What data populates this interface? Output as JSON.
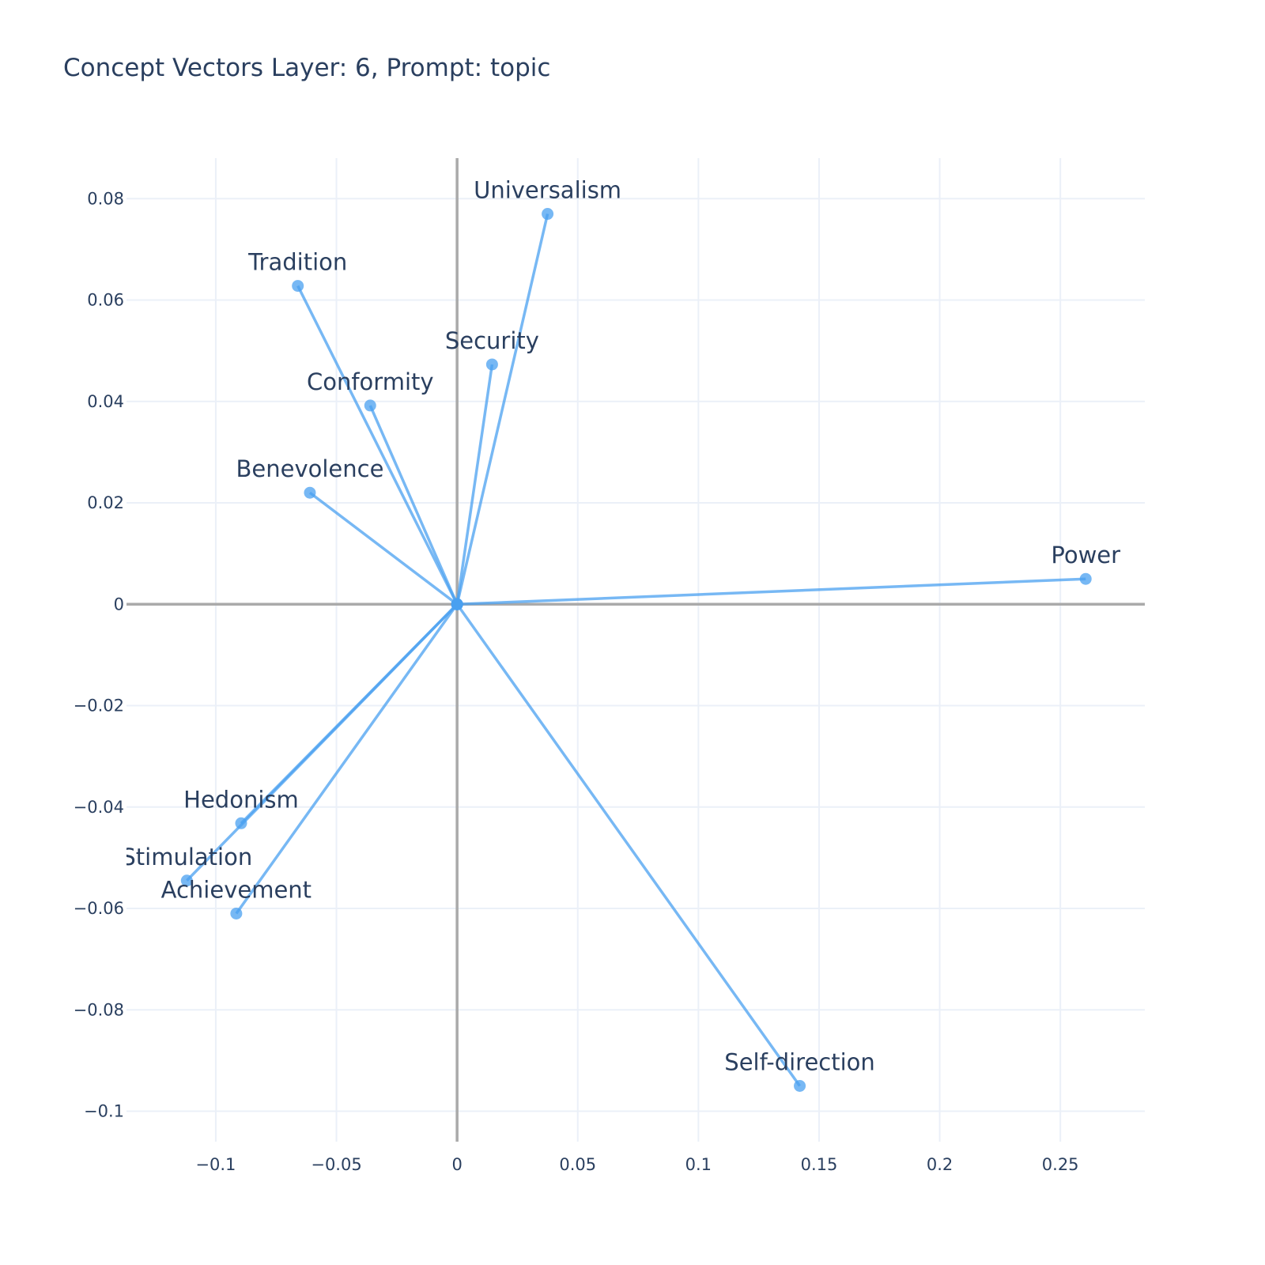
{
  "chart_data": {
    "type": "scatter",
    "title": "Concept Vectors Layer: 6, Prompt: topic",
    "xlabel": "",
    "ylabel": "",
    "xlim": [
      -0.137,
      0.285
    ],
    "ylim": [
      -0.106,
      0.088
    ],
    "x_ticks": [
      -0.1,
      -0.05,
      0,
      0.05,
      0.1,
      0.15,
      0.2,
      0.25
    ],
    "x_tick_labels": [
      "−0.1",
      "−0.05",
      "0",
      "0.05",
      "0.1",
      "0.15",
      "0.2",
      "0.25"
    ],
    "y_ticks": [
      0.08,
      0.06,
      0.04,
      0.02,
      0,
      -0.02,
      -0.04,
      -0.06,
      -0.08,
      -0.1
    ],
    "y_tick_labels": [
      "0.08",
      "0.06",
      "0.04",
      "0.02",
      "0",
      "−0.02",
      "−0.04",
      "−0.06",
      "−0.08",
      "−0.1"
    ],
    "grid": true,
    "origin": [
      0,
      0
    ],
    "color": "#4aa0f0",
    "points": [
      {
        "label": "Universalism",
        "x": 0.0375,
        "y": 0.077
      },
      {
        "label": "Tradition",
        "x": -0.066,
        "y": 0.0628
      },
      {
        "label": "Security",
        "x": 0.0145,
        "y": 0.0473
      },
      {
        "label": "Conformity",
        "x": -0.036,
        "y": 0.0392
      },
      {
        "label": "Benevolence",
        "x": -0.061,
        "y": 0.022
      },
      {
        "label": "Power",
        "x": 0.2605,
        "y": 0.005
      },
      {
        "label": "Hedonism",
        "x": -0.0895,
        "y": -0.0432
      },
      {
        "label": "Stimulation",
        "x": -0.112,
        "y": -0.0545
      },
      {
        "label": "Achievement",
        "x": -0.0915,
        "y": -0.061
      },
      {
        "label": "Self-direction",
        "x": 0.142,
        "y": -0.095
      }
    ]
  }
}
